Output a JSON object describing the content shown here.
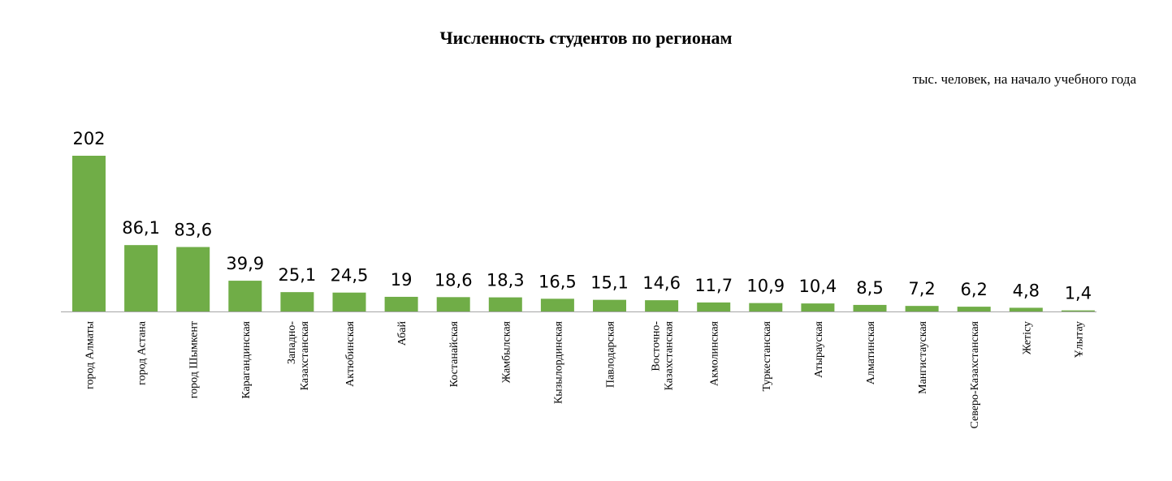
{
  "chart_data": {
    "type": "bar",
    "title": "Численность студентов по регионам",
    "subtitle": "тыс. человек, на начало учебного года",
    "xlabel": "",
    "ylabel": "",
    "grid": false,
    "legend": "none",
    "bar_color": "#70ad47",
    "axis_color": "#a6a6a6",
    "categories": [
      [
        "город Алматы"
      ],
      [
        "город Астана"
      ],
      [
        "город Шымкент"
      ],
      [
        "Карагандинская"
      ],
      [
        "Западно-",
        "Казахстанская"
      ],
      [
        "Актюбинская"
      ],
      [
        "Абай"
      ],
      [
        "Костанайская"
      ],
      [
        "Жамбылская"
      ],
      [
        "Кызылординская"
      ],
      [
        "Павлодарская"
      ],
      [
        "Восточно-",
        "Казахстанская"
      ],
      [
        "Акмолинская"
      ],
      [
        "Туркестанская"
      ],
      [
        "Атырауская"
      ],
      [
        "Алматинская"
      ],
      [
        "Мангистауская"
      ],
      [
        "Северо-Казахстанская"
      ],
      [
        "Жетісу"
      ],
      [
        "Ұлытау"
      ]
    ],
    "values": [
      202,
      86.1,
      83.6,
      39.9,
      25.1,
      24.5,
      19,
      18.6,
      18.3,
      16.5,
      15.1,
      14.6,
      11.7,
      10.9,
      10.4,
      8.5,
      7.2,
      6.2,
      4.8,
      1.4
    ],
    "value_labels": [
      "202",
      "86,1",
      "83,6",
      "39,9",
      "25,1",
      "24,5",
      "19",
      "18,6",
      "18,3",
      "16,5",
      "15,1",
      "14,6",
      "11,7",
      "10,9",
      "10,4",
      "8,5",
      "7,2",
      "6,2",
      "4,8",
      "1,4"
    ]
  }
}
